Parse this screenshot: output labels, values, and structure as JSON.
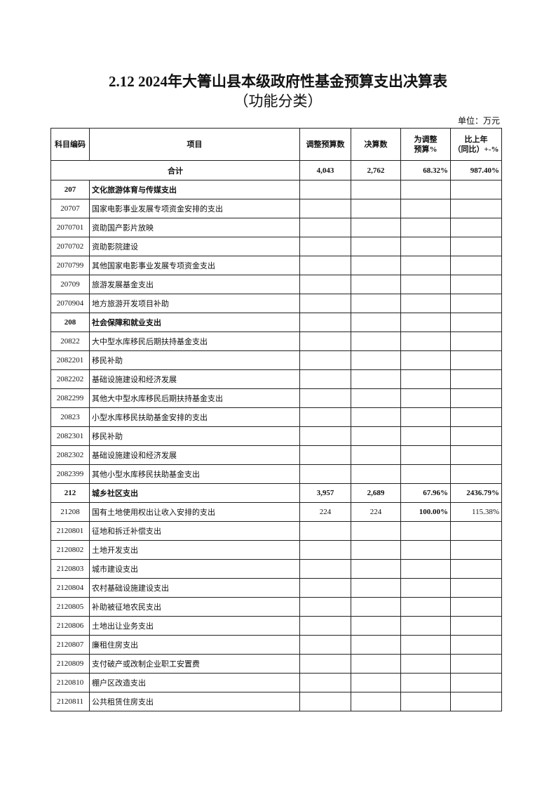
{
  "title": "2.12  2024年大箐山县本级政府性基金预算支出决算表",
  "subtitle": "（功能分类）",
  "unit": "单位：万元",
  "headers": {
    "code": "科目编码",
    "item": "项目",
    "budget": "调整预算数",
    "actual": "决算数",
    "pct": "为调整\n预算%",
    "yoy": "比上年\n（同比）+-%"
  },
  "total": {
    "label": "合计",
    "budget": "4,043",
    "actual": "2,762",
    "pct": "68.32%",
    "yoy": "987.40%"
  },
  "rows": [
    {
      "code": "207",
      "item": "文化旅游体育与传媒支出",
      "bold": true
    },
    {
      "code": "20707",
      "item": "国家电影事业发展专项资金安排的支出"
    },
    {
      "code": "2070701",
      "item": "资助国产影片放映"
    },
    {
      "code": "2070702",
      "item": "资助影院建设"
    },
    {
      "code": "2070799",
      "item": "其他国家电影事业发展专项资金支出"
    },
    {
      "code": "20709",
      "item": "旅游发展基金支出"
    },
    {
      "code": "2070904",
      "item": "地方旅游开发项目补助"
    },
    {
      "code": "208",
      "item": "社会保障和就业支出",
      "bold": true
    },
    {
      "code": "20822",
      "item": "大中型水库移民后期扶持基金支出"
    },
    {
      "code": "2082201",
      "item": "移民补助"
    },
    {
      "code": "2082202",
      "item": "基础设施建设和经济发展"
    },
    {
      "code": "2082299",
      "item": "其他大中型水库移民后期扶持基金支出"
    },
    {
      "code": "20823",
      "item": "小型水库移民扶助基金安排的支出"
    },
    {
      "code": "2082301",
      "item": "移民补助"
    },
    {
      "code": "2082302",
      "item": "基础设施建设和经济发展"
    },
    {
      "code": "2082399",
      "item": "其他小型水库移民扶助基金支出"
    },
    {
      "code": "212",
      "item": "城乡社区支出",
      "bold": true,
      "budget": "3,957",
      "actual": "2,689",
      "pct": "67.96%",
      "yoy": "2436.79%"
    },
    {
      "code": "21208",
      "item": "国有土地使用权出让收入安排的支出",
      "budget": "224",
      "actual": "224",
      "pct": "100.00%",
      "yoy": "115.38%",
      "pct_bold": true
    },
    {
      "code": "2120801",
      "item": "征地和拆迁补偿支出"
    },
    {
      "code": "2120802",
      "item": "土地开发支出"
    },
    {
      "code": "2120803",
      "item": "城市建设支出"
    },
    {
      "code": "2120804",
      "item": "农村基础设施建设支出"
    },
    {
      "code": "2120805",
      "item": "补助被征地农民支出"
    },
    {
      "code": "2120806",
      "item": "土地出让业务支出"
    },
    {
      "code": "2120807",
      "item": "廉租住房支出"
    },
    {
      "code": "2120809",
      "item": "支付破产或改制企业职工安置费"
    },
    {
      "code": "2120810",
      "item": "棚户区改造支出"
    },
    {
      "code": "2120811",
      "item": "公共租赁住房支出"
    }
  ]
}
